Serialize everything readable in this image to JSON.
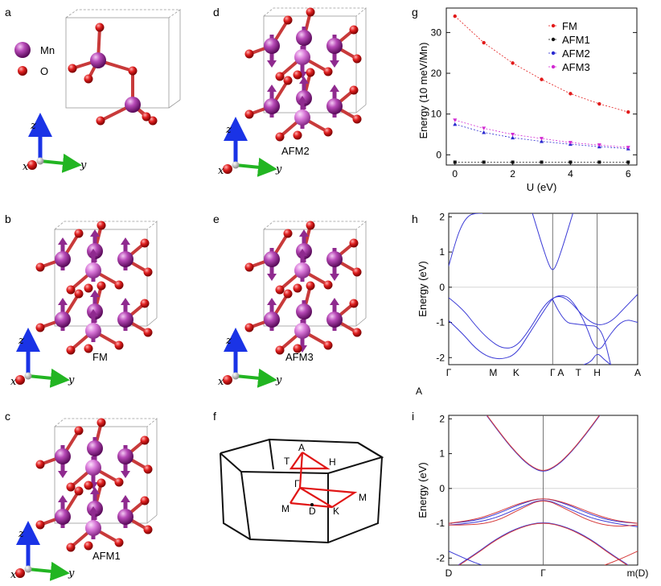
{
  "panel_labels": [
    "a",
    "b",
    "c",
    "d",
    "e",
    "f",
    "g",
    "h",
    "i"
  ],
  "legend_atoms": [
    {
      "symbol": "Mn",
      "color": "#9b1f9b"
    },
    {
      "symbol": "O",
      "color": "#d21414"
    }
  ],
  "axis_letters": {
    "x": "x",
    "y": "y",
    "z": "z"
  },
  "structure_captions": {
    "b": "FM",
    "c": "AFM1",
    "d": "AFM2",
    "e": "AFM3"
  },
  "bz_points": {
    "A": "A",
    "T": "T",
    "H": "H",
    "Gamma": "Γ",
    "M_left": "M",
    "D": "D",
    "K": "K",
    "M_right": "M"
  },
  "stray_label": "A",
  "colors": {
    "mn": "#9b1f9b",
    "mn_light": "#d860d8",
    "o": "#d21414",
    "bond": "#c83a3a",
    "arrow": "#8f2a8f",
    "band_blue": "#3b3bd6",
    "band_red": "#d63b3b"
  },
  "chart_data": [
    {
      "id": "g",
      "type": "line",
      "xlabel": "U  (eV)",
      "ylabel": "Energy (10 meV/Mn)",
      "xlim": [
        -0.3,
        6.3
      ],
      "ylim": [
        -2.5,
        36
      ],
      "xticks": [
        0,
        2,
        4,
        6
      ],
      "yticks": [
        0,
        10,
        20,
        30
      ],
      "series": [
        {
          "name": "FM",
          "color": "#e21a1a",
          "marker": "dot",
          "x": [
            0,
            1,
            2,
            3,
            4,
            5,
            6
          ],
          "y": [
            34,
            27.5,
            22.5,
            18.5,
            15,
            12.5,
            10.5
          ]
        },
        {
          "name": "AFM1",
          "color": "#111111",
          "marker": "square",
          "x": [
            0,
            1,
            2,
            3,
            4,
            5,
            6
          ],
          "y": [
            -1.8,
            -1.8,
            -1.8,
            -1.8,
            -1.8,
            -1.8,
            -1.8
          ]
        },
        {
          "name": "AFM2",
          "color": "#2a2ad0",
          "marker": "triangle-up",
          "x": [
            0,
            1,
            2,
            3,
            4,
            5,
            6
          ],
          "y": [
            7.5,
            5.5,
            4.2,
            3.3,
            2.6,
            2.0,
            1.5
          ]
        },
        {
          "name": "AFM3",
          "color": "#d22ad2",
          "marker": "triangle-down",
          "x": [
            0,
            1,
            2,
            3,
            4,
            5,
            6
          ],
          "y": [
            8.5,
            6.5,
            5.0,
            4.0,
            3.0,
            2.4,
            1.8
          ]
        }
      ]
    },
    {
      "id": "h",
      "type": "line",
      "xlabel": "",
      "ylabel": "Energy  (eV)",
      "ylim": [
        -2.2,
        2.1
      ],
      "yticks": [
        -2,
        -1,
        0,
        1,
        2
      ],
      "kpath_labels": [
        "Γ",
        "M",
        "K",
        "Γ",
        "A",
        "T",
        "H",
        "A"
      ],
      "kpath_x": [
        0,
        0.33,
        0.5,
        0.77,
        0.83,
        0.96,
        1.1,
        1.4
      ],
      "xlim": [
        0,
        1.4
      ],
      "vlines": [
        0.77,
        1.1
      ],
      "series": [
        {
          "name": "cond-1",
          "color": "#3b3bd6",
          "x": [
            0,
            0.05,
            0.1,
            0.15,
            0.2,
            0.25
          ],
          "y": [
            0.6,
            1.3,
            1.8,
            2.05,
            2.1,
            2.1
          ]
        },
        {
          "name": "cond-2",
          "color": "#3b3bd6",
          "x": [
            0.62,
            0.66,
            0.7,
            0.74,
            0.77,
            0.8,
            0.84,
            0.88,
            0.92
          ],
          "y": [
            2.1,
            1.6,
            1.1,
            0.65,
            0.45,
            0.65,
            1.1,
            1.6,
            2.1
          ]
        },
        {
          "name": "val-1",
          "color": "#3b3bd6",
          "x": [
            0,
            0.1,
            0.2,
            0.3,
            0.4,
            0.5,
            0.6,
            0.7,
            0.77,
            0.83,
            0.9,
            1.0,
            1.1,
            1.2,
            1.3,
            1.4
          ],
          "y": [
            -0.3,
            -0.6,
            -1.1,
            -1.5,
            -1.75,
            -1.7,
            -1.2,
            -0.55,
            -0.3,
            -0.25,
            -0.4,
            -0.85,
            -1.1,
            -1.0,
            -0.6,
            -0.2
          ]
        },
        {
          "name": "val-2",
          "color": "#3b3bd6",
          "x": [
            0,
            0.1,
            0.2,
            0.3,
            0.4,
            0.5,
            0.6,
            0.7,
            0.77,
            0.83,
            0.9,
            1.0,
            1.1,
            1.2,
            1.3,
            1.4
          ],
          "y": [
            -0.95,
            -1.3,
            -1.75,
            -2.0,
            -2.05,
            -1.9,
            -1.3,
            -0.7,
            -0.3,
            -0.22,
            -0.3,
            -0.9,
            -1.95,
            -1.3,
            -0.9,
            -1.0
          ]
        },
        {
          "name": "val-3",
          "color": "#3b3bd6",
          "x": [
            0.77,
            0.85,
            0.95,
            1.05,
            1.1,
            1.15,
            1.2
          ],
          "y": [
            -0.35,
            -1.0,
            -1.05,
            -1.1,
            -1.1,
            -1.4,
            -2.2
          ]
        },
        {
          "name": "val-4",
          "color": "#3b3bd6",
          "x": [
            1.0,
            1.05,
            1.1,
            1.15,
            1.2
          ],
          "y": [
            -2.2,
            -2.15,
            -1.85,
            -2.05,
            -2.2
          ]
        }
      ]
    },
    {
      "id": "i",
      "type": "line",
      "xlabel": "",
      "ylabel": "Energy  (eV)",
      "xlim": [
        -1,
        1
      ],
      "ylim": [
        -2.2,
        2.1
      ],
      "yticks": [
        -2,
        -1,
        0,
        1,
        2
      ],
      "kpath_labels": [
        "D",
        "Γ",
        "m(D)"
      ],
      "kpath_x": [
        -1,
        0,
        1
      ],
      "vlines": [
        0
      ],
      "series": [
        {
          "name": "cond-blue",
          "color": "#3b3bd6",
          "x": [
            -0.6,
            -0.45,
            -0.3,
            -0.15,
            0,
            0.15,
            0.3,
            0.45,
            0.6
          ],
          "y": [
            2.1,
            1.55,
            1.05,
            0.65,
            0.45,
            0.65,
            1.05,
            1.55,
            2.1
          ]
        },
        {
          "name": "cond-red",
          "color": "#d63b3b",
          "x": [
            -0.6,
            -0.45,
            -0.3,
            -0.15,
            0,
            0.15,
            0.3,
            0.45,
            0.6
          ],
          "y": [
            2.12,
            1.57,
            1.07,
            0.67,
            0.47,
            0.67,
            1.07,
            1.57,
            2.12
          ]
        },
        {
          "name": "v1-blue",
          "color": "#3b3bd6",
          "x": [
            -1,
            -0.75,
            -0.5,
            -0.25,
            0,
            0.25,
            0.5,
            0.75,
            1
          ],
          "y": [
            -1.0,
            -0.95,
            -0.75,
            -0.45,
            -0.25,
            -0.45,
            -0.75,
            -0.95,
            -1.0
          ]
        },
        {
          "name": "v1-red",
          "color": "#d63b3b",
          "x": [
            -1,
            -0.75,
            -0.5,
            -0.25,
            0,
            0.25,
            0.5,
            0.75,
            1
          ],
          "y": [
            -1.0,
            -0.92,
            -0.7,
            -0.42,
            -0.26,
            -0.42,
            -0.7,
            -0.92,
            -1.0
          ]
        },
        {
          "name": "v2-blue",
          "color": "#3b3bd6",
          "x": [
            -1,
            -0.75,
            -0.5,
            -0.25,
            0,
            0.25,
            0.5,
            0.75,
            1
          ],
          "y": [
            -1.05,
            -1.0,
            -0.85,
            -0.55,
            -0.28,
            -0.55,
            -0.85,
            -1.0,
            -1.1
          ]
        },
        {
          "name": "v2-red",
          "color": "#d63b3b",
          "x": [
            -1,
            -0.75,
            -0.5,
            -0.25,
            0,
            0.25,
            0.5,
            0.75,
            1
          ],
          "y": [
            -1.05,
            -1.05,
            -0.95,
            -0.6,
            -0.28,
            -0.6,
            -0.95,
            -1.1,
            -1.05
          ]
        },
        {
          "name": "v3-blue",
          "color": "#3b3bd6",
          "x": [
            -0.9,
            -0.7,
            -0.5,
            -0.25,
            0,
            0.25,
            0.5,
            0.7,
            0.9
          ],
          "y": [
            -2.2,
            -1.85,
            -1.45,
            -1.1,
            -0.95,
            -1.1,
            -1.45,
            -1.85,
            -2.2
          ]
        },
        {
          "name": "v3-red",
          "color": "#d63b3b",
          "x": [
            -0.9,
            -0.7,
            -0.5,
            -0.25,
            0,
            0.25,
            0.5,
            0.7,
            0.9
          ],
          "y": [
            -2.22,
            -1.87,
            -1.47,
            -1.12,
            -0.96,
            -1.12,
            -1.47,
            -1.87,
            -2.22
          ]
        },
        {
          "name": "v4-blue",
          "color": "#3b3bd6",
          "x": [
            -1,
            -0.8,
            -0.65
          ],
          "y": [
            -1.8,
            -2.05,
            -2.2
          ]
        },
        {
          "name": "v4-red",
          "color": "#d63b3b",
          "x": [
            0.65,
            0.8,
            1
          ],
          "y": [
            -2.2,
            -2.05,
            -1.8
          ]
        }
      ]
    }
  ]
}
